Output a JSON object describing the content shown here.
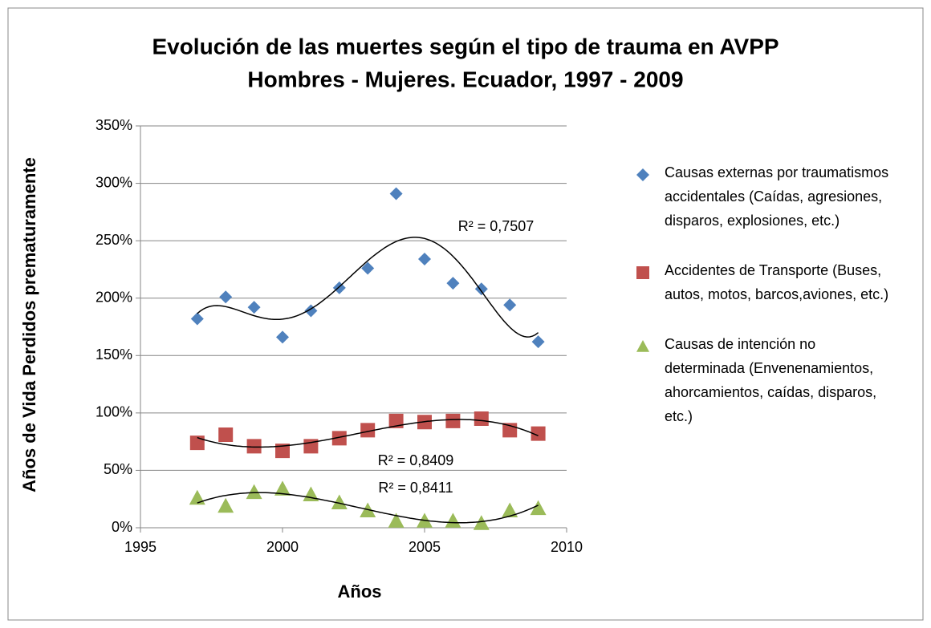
{
  "chart_data": {
    "type": "scatter",
    "title": [
      "Evolución de las muertes según el tipo de trauma en AVPP",
      "Hombres - Mujeres. Ecuador, 1997 - 2009"
    ],
    "x_label": "Años",
    "y_label": "Años de Vida Perdidos  prematuramente",
    "x": [
      1997,
      1998,
      1999,
      2000,
      2001,
      2002,
      2003,
      2004,
      2005,
      2006,
      2007,
      2008,
      2009
    ],
    "series": [
      {
        "name": "Causas externas por traumatismos accidentales (Caídas, agresiones, disparos, explosiones, etc.)",
        "color": "#4f81bd",
        "marker": "diamond",
        "values": [
          182,
          201,
          192,
          166,
          189,
          209,
          226,
          291,
          234,
          213,
          208,
          194,
          162
        ],
        "trendline": {
          "order": 5,
          "label": "R² = 0,7507"
        }
      },
      {
        "name": "Accidentes de Transporte (Buses, autos, motos, barcos,aviones, etc.)",
        "color": "#c0504d",
        "marker": "square",
        "values": [
          74,
          81,
          71,
          67,
          71,
          78,
          85,
          93,
          92,
          93,
          95,
          85,
          82
        ],
        "trendline": {
          "order": 3,
          "label": "R² = 0,8409"
        }
      },
      {
        "name": "Causas de intención no determinada (Envenenamientos, ahorcamientos, caídas, disparos, etc.)",
        "color": "#9bbb59",
        "marker": "triangle",
        "values": [
          26,
          19,
          31,
          34,
          29,
          22,
          15,
          6,
          6,
          6,
          4,
          15,
          17
        ],
        "trendline": {
          "order": 3,
          "label": "R² = 0,8411"
        }
      }
    ],
    "xlim": [
      1995,
      2010
    ],
    "xticks": [
      1995,
      2000,
      2005,
      2010
    ],
    "ylim": [
      0,
      350
    ],
    "yticks": [
      {
        "value": 0,
        "label": "0%"
      },
      {
        "value": 50,
        "label": "50%"
      },
      {
        "value": 100,
        "label": "100%"
      },
      {
        "value": 150,
        "label": "150%"
      },
      {
        "value": 200,
        "label": "200%"
      },
      {
        "value": 250,
        "label": "250%"
      },
      {
        "value": 300,
        "label": "300%"
      },
      {
        "value": 350,
        "label": "350%"
      }
    ],
    "grid": true,
    "legend": "right"
  }
}
